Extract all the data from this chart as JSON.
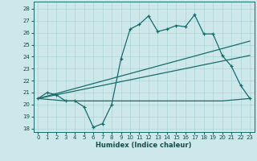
{
  "xlabel": "Humidex (Indice chaleur)",
  "bg_color": "#cce8ea",
  "grid_color": "#aed4d8",
  "line_color": "#1a6b6b",
  "xlim": [
    -0.5,
    23.5
  ],
  "ylim": [
    17.7,
    28.6
  ],
  "xticks": [
    0,
    1,
    2,
    3,
    4,
    5,
    6,
    7,
    8,
    9,
    10,
    11,
    12,
    13,
    14,
    15,
    16,
    17,
    18,
    19,
    20,
    21,
    22,
    23
  ],
  "yticks": [
    18,
    19,
    20,
    21,
    22,
    23,
    24,
    25,
    26,
    27,
    28
  ],
  "series1_x": [
    0,
    1,
    2,
    3,
    4,
    5,
    6,
    7,
    8,
    9,
    10,
    11,
    12,
    13,
    14,
    15,
    16,
    17,
    18,
    19,
    20,
    21,
    22,
    23
  ],
  "series1_y": [
    20.5,
    21.0,
    20.8,
    20.3,
    20.3,
    19.8,
    18.1,
    18.4,
    20.0,
    23.8,
    26.3,
    26.7,
    27.4,
    26.1,
    26.3,
    26.6,
    26.5,
    27.5,
    25.9,
    25.9,
    24.1,
    23.2,
    21.6,
    20.5
  ],
  "series2_x": [
    0,
    3,
    9,
    20,
    23
  ],
  "series2_y": [
    20.5,
    20.3,
    20.3,
    20.3,
    20.5
  ],
  "series3_x": [
    0,
    23
  ],
  "series3_y": [
    20.5,
    25.3
  ],
  "series4_x": [
    0,
    23
  ],
  "series4_y": [
    20.5,
    24.1
  ]
}
